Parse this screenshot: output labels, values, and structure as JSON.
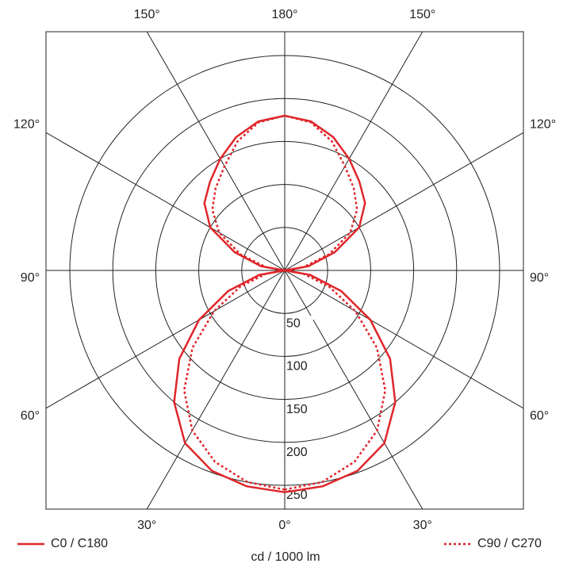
{
  "chart_data": {
    "type": "polar",
    "x_label": "cd / 1000 lm",
    "x": [
      0,
      10,
      20,
      30,
      40,
      50,
      60,
      70,
      80,
      90,
      100,
      110,
      120,
      130,
      140,
      150,
      160,
      170,
      180
    ],
    "series": [
      {
        "name": "C0 / C180",
        "color": "#e0262a",
        "dash": false,
        "values": [
          258,
          255,
          248,
          232,
          200,
          160,
          115,
          70,
          30,
          0,
          28,
          62,
          100,
          122,
          135,
          150,
          165,
          176,
          180
        ]
      },
      {
        "name": "C90 / C270",
        "color": "#e0262a",
        "dash": true,
        "values": [
          255,
          250,
          237,
          215,
          182,
          140,
          95,
          55,
          22,
          0,
          22,
          55,
          88,
          110,
          125,
          140,
          160,
          175,
          180
        ]
      }
    ],
    "rlim": [
      0,
      250
    ],
    "rticks": [
      50,
      100,
      150,
      200,
      250
    ],
    "angle_ticks": [
      {
        "value": 0,
        "label": "0°"
      },
      {
        "value": 30,
        "label": "30°"
      },
      {
        "value": 60,
        "label": "60°"
      },
      {
        "value": 90,
        "label": "90°"
      },
      {
        "value": 120,
        "label": "120°"
      },
      {
        "value": 150,
        "label": "150°"
      },
      {
        "value": 180,
        "label": "180°"
      }
    ]
  }
}
